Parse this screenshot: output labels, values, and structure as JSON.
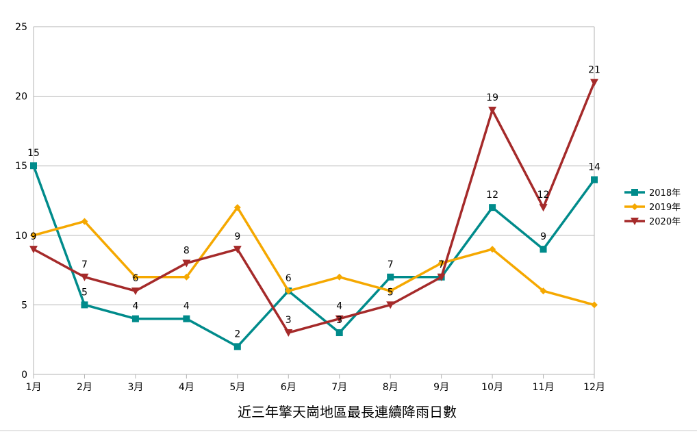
{
  "chart_data": {
    "type": "line",
    "title": "近三年擎天崗地區最長連續降雨日數",
    "xlabel": "",
    "ylabel": "",
    "categories": [
      "1月",
      "2月",
      "3月",
      "4月",
      "5月",
      "6月",
      "7月",
      "8月",
      "9月",
      "10月",
      "11月",
      "12月"
    ],
    "ylim": [
      0,
      25
    ],
    "yticks": [
      "0",
      "5",
      "10",
      "15",
      "20",
      "25"
    ],
    "grid": "horizontal",
    "legend": "right",
    "series": [
      {
        "name": "2018年",
        "color": "#008b8b",
        "marker": "square",
        "values": [
          15,
          5,
          4,
          4,
          2,
          6,
          3,
          7,
          7,
          12,
          9,
          14
        ],
        "labels": [
          "15",
          "5",
          "4",
          "4",
          "2",
          "6",
          "3",
          "7",
          "",
          "12",
          "9",
          "14"
        ]
      },
      {
        "name": "2019年",
        "color": "#f5a800",
        "marker": "diamond",
        "values": [
          10,
          11,
          7,
          7,
          12,
          6,
          7,
          6,
          8,
          9,
          6,
          5
        ],
        "labels": [
          "",
          "",
          "",
          "",
          "",
          "",
          "",
          "",
          "",
          "",
          "",
          ""
        ]
      },
      {
        "name": "2020年",
        "color": "#a52a2a",
        "marker": "triangle-down",
        "values": [
          9,
          7,
          6,
          8,
          9,
          3,
          4,
          5,
          7,
          19,
          12,
          21
        ],
        "labels": [
          "9",
          "7",
          "6",
          "8",
          "9",
          "3",
          "4",
          "5",
          "7",
          "19",
          "12",
          "21"
        ]
      }
    ]
  }
}
